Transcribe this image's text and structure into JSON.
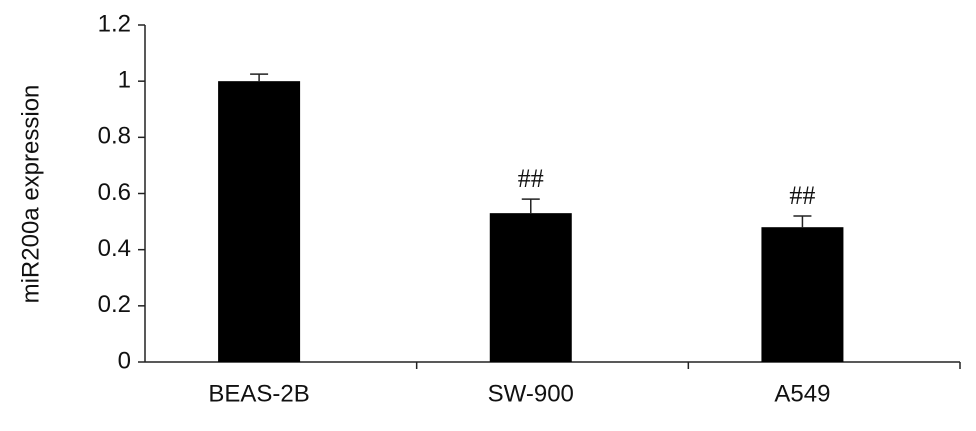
{
  "chart_data": {
    "type": "bar",
    "y_label": "miR200a expression",
    "categories": [
      "BEAS-2B",
      "SW-900",
      "A549"
    ],
    "values": [
      1.0,
      0.53,
      0.48
    ],
    "errors": [
      0.025,
      0.05,
      0.04
    ],
    "color": "#000000",
    "annotations": [
      {
        "category": "SW-900",
        "text": "##"
      },
      {
        "category": "A549",
        "text": "##"
      }
    ],
    "ylim": [
      0,
      1.2
    ],
    "yticks": [
      0,
      0.2,
      0.4,
      0.6,
      0.8,
      1,
      1.2
    ],
    "grid": false
  }
}
